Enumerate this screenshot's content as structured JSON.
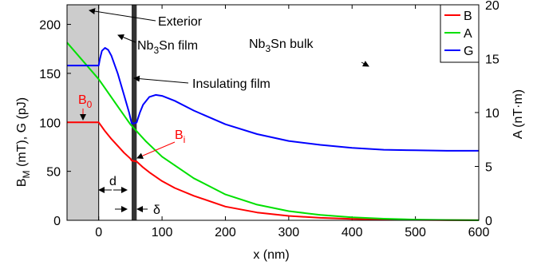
{
  "chart_data": {
    "type": "line",
    "xlabel": "x (nm)",
    "ylabel_left": {
      "main": "B",
      "sub": "M",
      "rest": " (mT), G (pJ)"
    },
    "ylabel_right": "A (nT·m)",
    "xlim": [
      -50,
      600
    ],
    "ylim_left": [
      0,
      220
    ],
    "ylim_right": [
      0,
      20
    ],
    "xticks": [
      0,
      100,
      200,
      300,
      400,
      500,
      600
    ],
    "xtick_labels": [
      "0",
      "100",
      "200",
      "300",
      "400",
      "500",
      "600"
    ],
    "yticks_left": [
      0,
      50,
      100,
      150,
      200
    ],
    "ytick_labels_left": [
      "0",
      "50",
      "100",
      "150",
      "200"
    ],
    "yticks_right": [
      0,
      5,
      10,
      15,
      20
    ],
    "ytick_labels_right": [
      "0",
      "5",
      "10",
      "15",
      "20"
    ],
    "legend": {
      "placement": "top-right",
      "entries": [
        "B",
        "A",
        "G"
      ]
    },
    "regions": {
      "exterior": [
        -50,
        0
      ],
      "insulator": [
        52,
        60
      ]
    },
    "series": [
      {
        "name": "B",
        "axis": "left",
        "color": "#ff0000",
        "x": [
          -50,
          0,
          10,
          20,
          30,
          40,
          50,
          52,
          60,
          70,
          80,
          100,
          120,
          150,
          200,
          250,
          300,
          350,
          400,
          450,
          500,
          550,
          600
        ],
        "y": [
          100,
          100,
          91,
          83,
          76,
          69,
          63,
          61,
          60,
          54,
          49,
          40,
          33,
          25,
          14,
          8,
          4.5,
          2.5,
          1.4,
          0.8,
          0.4,
          0.2,
          0.1
        ]
      },
      {
        "name": "A",
        "axis": "right",
        "color": "#00e000",
        "x": [
          -50,
          -25,
          0,
          25,
          50,
          75,
          100,
          150,
          200,
          250,
          300,
          350,
          400,
          450,
          500,
          550,
          600
        ],
        "y": [
          16.5,
          14.8,
          13.1,
          11.0,
          8.9,
          7.3,
          5.9,
          3.9,
          2.4,
          1.45,
          0.85,
          0.5,
          0.28,
          0.15,
          0.07,
          0.03,
          0.01
        ]
      },
      {
        "name": "G",
        "axis": "left",
        "color": "#0000ff",
        "x": [
          -50,
          0,
          2,
          5,
          10,
          15,
          20,
          30,
          40,
          48,
          52,
          57,
          60,
          65,
          70,
          80,
          90,
          100,
          120,
          150,
          200,
          250,
          300,
          350,
          400,
          450,
          500,
          550,
          600
        ],
        "y": [
          158,
          158,
          165,
          173,
          176,
          174,
          168,
          150,
          128,
          110,
          99,
          99,
          100,
          110,
          118,
          126,
          128,
          127,
          122,
          112,
          98,
          88,
          81,
          77,
          74,
          72,
          71.5,
          71,
          71
        ]
      }
    ],
    "annotations": [
      {
        "text": "Exterior"
      },
      {
        "text": "Nb₃Sn film",
        "main": "Nb",
        "sub": "3",
        "rest": "Sn film"
      },
      {
        "text": "Nb₃Sn bulk",
        "main": "Nb",
        "sub": "3",
        "rest": "Sn bulk"
      },
      {
        "text": "Insulating film"
      },
      {
        "text": "B₀",
        "main": "B",
        "sub": "0"
      },
      {
        "text": "Bᵢ",
        "main": "B",
        "sub": "i"
      },
      {
        "text": "d"
      },
      {
        "text": "δ"
      }
    ]
  }
}
